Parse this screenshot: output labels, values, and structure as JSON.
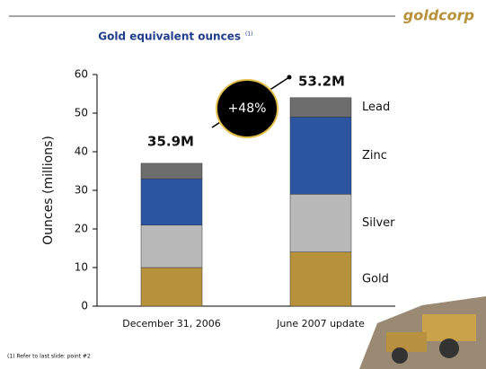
{
  "chart_data": {
    "type": "bar",
    "stacked": true,
    "logo": "goldcorp",
    "title": "Gold equivalent ounces",
    "title_note": "(1)",
    "ylabel": "Ounces (millions)",
    "categories": [
      "December 31, 2006",
      "June 2007 update"
    ],
    "series": [
      {
        "name": "Gold",
        "color": "#b8923a",
        "values": [
          10,
          14
        ]
      },
      {
        "name": "Silver",
        "color": "#b9b9b9",
        "values": [
          11,
          15
        ]
      },
      {
        "name": "Zinc",
        "color": "#2b55a0",
        "values": [
          12,
          20
        ]
      },
      {
        "name": "Lead",
        "color": "#6d6d6d",
        "values": [
          4,
          5
        ]
      }
    ],
    "ylim": [
      0,
      60
    ],
    "yticks": [
      0,
      10,
      20,
      30,
      40,
      50,
      60
    ],
    "annotations": [
      "35.9M",
      "53.2M",
      "+48%"
    ],
    "footnote": "(1) Refer to last slide: point #2"
  }
}
